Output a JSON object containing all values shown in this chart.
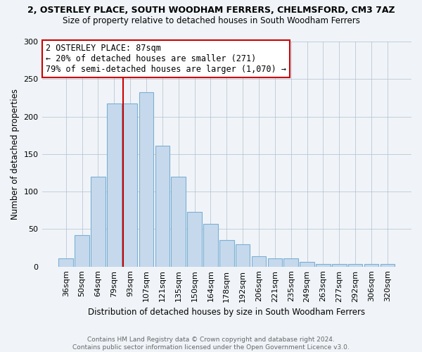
{
  "title": "2, OSTERLEY PLACE, SOUTH WOODHAM FERRERS, CHELMSFORD, CM3 7AZ",
  "subtitle": "Size of property relative to detached houses in South Woodham Ferrers",
  "xlabel": "Distribution of detached houses by size in South Woodham Ferrers",
  "ylabel": "Number of detached properties",
  "footer_line1": "Contains HM Land Registry data © Crown copyright and database right 2024.",
  "footer_line2": "Contains public sector information licensed under the Open Government Licence v3.0.",
  "annotation_line1": "2 OSTERLEY PLACE: 87sqm",
  "annotation_line2": "← 20% of detached houses are smaller (271)",
  "annotation_line3": "79% of semi-detached houses are larger (1,070) →",
  "bar_labels": [
    "36sqm",
    "50sqm",
    "64sqm",
    "79sqm",
    "93sqm",
    "107sqm",
    "121sqm",
    "135sqm",
    "150sqm",
    "164sqm",
    "178sqm",
    "192sqm",
    "206sqm",
    "221sqm",
    "235sqm",
    "249sqm",
    "263sqm",
    "277sqm",
    "292sqm",
    "306sqm",
    "320sqm"
  ],
  "bar_values": [
    11,
    42,
    120,
    217,
    217,
    232,
    161,
    120,
    73,
    57,
    35,
    30,
    14,
    11,
    11,
    6,
    3,
    3,
    3,
    3,
    3
  ],
  "bar_color": "#c6d9ec",
  "bar_edge_color": "#7bafd4",
  "vline_color": "#cc0000",
  "annotation_box_edge_color": "#cc0000",
  "annotation_box_face_color": "#ffffff",
  "background_color": "#f0f4f8",
  "plot_bg_color": "#f0f4f8",
  "ylim": [
    0,
    300
  ],
  "yticks": [
    0,
    50,
    100,
    150,
    200,
    250,
    300
  ],
  "vline_x": 3.57,
  "title_fontsize": 9,
  "subtitle_fontsize": 8.5,
  "ylabel_fontsize": 8.5,
  "xlabel_fontsize": 8.5,
  "tick_fontsize": 8,
  "footer_fontsize": 6.5,
  "annotation_fontsize": 8.5
}
